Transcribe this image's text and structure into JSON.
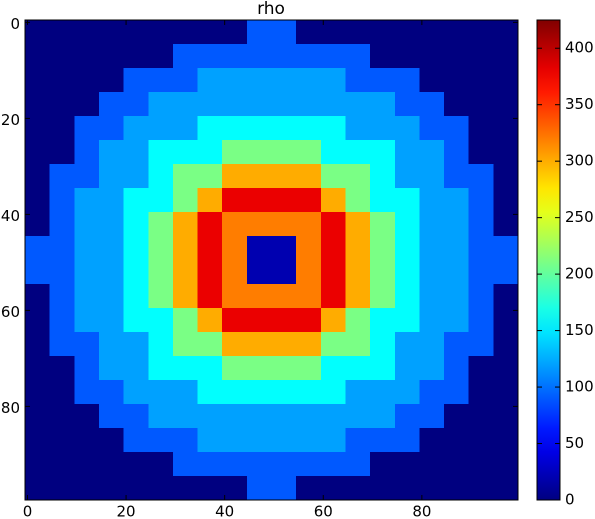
{
  "chart_data": {
    "type": "heatmap",
    "title": "rho",
    "xlim": [
      -0.5,
      99.5
    ],
    "ylim": [
      99.5,
      -0.5
    ],
    "xticks": [
      0,
      20,
      40,
      60,
      80
    ],
    "yticks": [
      0,
      20,
      40,
      60,
      80
    ],
    "colormap": "jet",
    "clim": [
      0,
      425
    ],
    "cticks": [
      0,
      50,
      100,
      150,
      200,
      250,
      300,
      350,
      400
    ],
    "z": [
      [
        0,
        0,
        0,
        0,
        0,
        0,
        0,
        0,
        0,
        90,
        90,
        0,
        0,
        0,
        0,
        0,
        0,
        0,
        0,
        0
      ],
      [
        0,
        0,
        0,
        0,
        0,
        0,
        90,
        90,
        90,
        90,
        90,
        90,
        90,
        90,
        0,
        0,
        0,
        0,
        0,
        0
      ],
      [
        0,
        0,
        0,
        0,
        90,
        90,
        90,
        120,
        120,
        120,
        120,
        120,
        120,
        90,
        90,
        90,
        0,
        0,
        0,
        0
      ],
      [
        0,
        0,
        0,
        90,
        90,
        120,
        120,
        120,
        120,
        120,
        120,
        120,
        120,
        120,
        120,
        90,
        90,
        0,
        0,
        0
      ],
      [
        0,
        0,
        90,
        90,
        120,
        120,
        120,
        160,
        160,
        160,
        160,
        160,
        160,
        120,
        120,
        120,
        90,
        90,
        0,
        0
      ],
      [
        0,
        0,
        90,
        120,
        120,
        160,
        160,
        160,
        210,
        210,
        210,
        210,
        160,
        160,
        160,
        120,
        120,
        90,
        0,
        0
      ],
      [
        0,
        90,
        90,
        120,
        120,
        160,
        210,
        210,
        300,
        300,
        300,
        300,
        210,
        210,
        160,
        120,
        120,
        90,
        90,
        0
      ],
      [
        0,
        90,
        120,
        120,
        160,
        160,
        210,
        300,
        380,
        380,
        380,
        380,
        300,
        210,
        160,
        160,
        120,
        120,
        90,
        0
      ],
      [
        0,
        90,
        120,
        120,
        160,
        210,
        300,
        380,
        320,
        320,
        320,
        320,
        380,
        300,
        210,
        160,
        120,
        120,
        90,
        0
      ],
      [
        90,
        90,
        120,
        120,
        160,
        210,
        300,
        380,
        320,
        20,
        20,
        320,
        380,
        300,
        210,
        160,
        120,
        120,
        90,
        90
      ],
      [
        90,
        90,
        120,
        120,
        160,
        210,
        300,
        380,
        320,
        20,
        20,
        320,
        380,
        300,
        210,
        160,
        120,
        120,
        90,
        90
      ],
      [
        0,
        90,
        120,
        120,
        160,
        210,
        300,
        380,
        320,
        320,
        320,
        320,
        380,
        300,
        210,
        160,
        120,
        120,
        90,
        0
      ],
      [
        0,
        90,
        120,
        120,
        160,
        160,
        210,
        300,
        380,
        380,
        380,
        380,
        300,
        210,
        160,
        160,
        120,
        120,
        90,
        0
      ],
      [
        0,
        90,
        90,
        120,
        120,
        160,
        210,
        210,
        300,
        300,
        300,
        300,
        210,
        210,
        160,
        120,
        120,
        90,
        90,
        0
      ],
      [
        0,
        0,
        90,
        120,
        120,
        160,
        160,
        160,
        210,
        210,
        210,
        210,
        160,
        160,
        160,
        120,
        120,
        90,
        0,
        0
      ],
      [
        0,
        0,
        90,
        90,
        120,
        120,
        120,
        160,
        160,
        160,
        160,
        160,
        160,
        120,
        120,
        120,
        90,
        90,
        0,
        0
      ],
      [
        0,
        0,
        0,
        90,
        90,
        120,
        120,
        120,
        120,
        120,
        120,
        120,
        120,
        120,
        120,
        90,
        90,
        0,
        0,
        0
      ],
      [
        0,
        0,
        0,
        0,
        90,
        90,
        90,
        120,
        120,
        120,
        120,
        120,
        120,
        90,
        90,
        90,
        0,
        0,
        0,
        0
      ],
      [
        0,
        0,
        0,
        0,
        0,
        0,
        90,
        90,
        90,
        90,
        90,
        90,
        90,
        90,
        0,
        0,
        0,
        0,
        0,
        0
      ],
      [
        0,
        0,
        0,
        0,
        0,
        0,
        0,
        0,
        0,
        90,
        90,
        0,
        0,
        0,
        0,
        0,
        0,
        0,
        0,
        0
      ]
    ]
  }
}
